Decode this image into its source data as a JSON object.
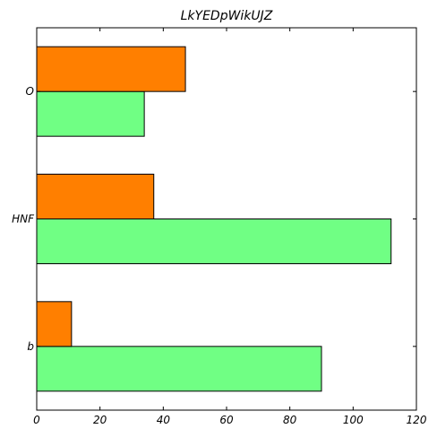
{
  "chart_data": {
    "type": "bar",
    "orientation": "horizontal",
    "title": "LkYEDpWikUJZ",
    "xlabel": "",
    "ylabel": "",
    "categories": [
      "b",
      "HNF",
      "O"
    ],
    "series": [
      {
        "values": [
          90,
          112,
          34
        ],
        "color": "#70ff84"
      },
      {
        "values": [
          11,
          37,
          47
        ],
        "color": "#ff7f00"
      }
    ],
    "xlim": [
      0,
      120
    ],
    "xticks": [
      0,
      20,
      40,
      60,
      80,
      100,
      120
    ],
    "grid": false,
    "legend": "none"
  }
}
